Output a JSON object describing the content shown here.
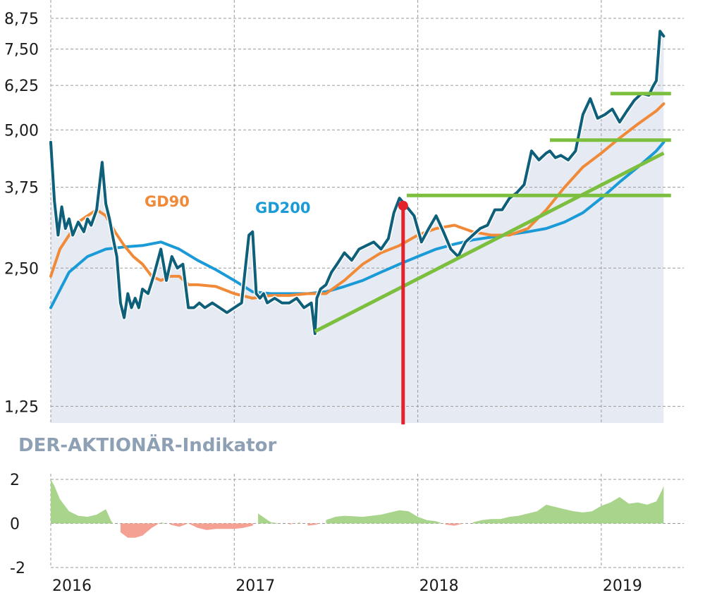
{
  "chart_data": [
    {
      "type": "line",
      "scale": "log",
      "ylim": [
        1.15,
        9.0
      ],
      "y_ticks": [
        "8,75",
        "7,50",
        "6,25",
        "5,00",
        "3,75",
        "2,50",
        "1,25"
      ],
      "y_tick_values": [
        8.75,
        7.5,
        6.25,
        5.0,
        3.75,
        2.5,
        1.25
      ],
      "x_ticks": [
        "2016",
        "2017",
        "2018",
        "2019"
      ],
      "x_tick_values": [
        2016.0,
        2017.0,
        2018.0,
        2019.0
      ],
      "xlim": [
        2016.0,
        2019.45
      ],
      "grid": true,
      "colors": {
        "price": "#0e5f7a",
        "gd90": "#f08a38",
        "gd200": "#1a9ad6",
        "trend": "#7cbf3e",
        "signal": "#e3232b",
        "area": "#e6ebf3"
      },
      "series": [
        {
          "key": "price",
          "x": [
            2016.0,
            2016.02,
            2016.04,
            2016.06,
            2016.08,
            2016.1,
            2016.12,
            2016.15,
            2016.18,
            2016.2,
            2016.22,
            2016.25,
            2016.28,
            2016.3,
            2016.32,
            2016.34,
            2016.36,
            2016.38,
            2016.4,
            2016.42,
            2016.44,
            2016.46,
            2016.48,
            2016.5,
            2016.53,
            2016.56,
            2016.6,
            2016.63,
            2016.66,
            2016.69,
            2016.72,
            2016.75,
            2016.78,
            2016.81,
            2016.84,
            2016.88,
            2016.92,
            2016.96,
            2017.0,
            2017.04,
            2017.08,
            2017.1,
            2017.12,
            2017.14,
            2017.16,
            2017.18,
            2017.22,
            2017.26,
            2017.3,
            2017.34,
            2017.38,
            2017.42,
            2017.44,
            2017.45,
            2017.47,
            2017.5,
            2017.53,
            2017.56,
            2017.6,
            2017.64,
            2017.68,
            2017.72,
            2017.76,
            2017.8,
            2017.84,
            2017.87,
            2017.9,
            2017.94,
            2017.98,
            2018.02,
            2018.06,
            2018.1,
            2018.14,
            2018.18,
            2018.22,
            2018.26,
            2018.3,
            2018.34,
            2018.38,
            2018.42,
            2018.46,
            2018.5,
            2018.54,
            2018.58,
            2018.62,
            2018.66,
            2018.7,
            2018.72,
            2018.75,
            2018.78,
            2018.82,
            2018.86,
            2018.9,
            2018.94,
            2018.98,
            2019.02,
            2019.06,
            2019.1,
            2019.14,
            2019.18,
            2019.22,
            2019.26,
            2019.28,
            2019.3,
            2019.32,
            2019.34
          ],
          "y": [
            4.7,
            3.5,
            2.95,
            3.4,
            3.05,
            3.2,
            2.95,
            3.15,
            3.0,
            3.2,
            3.1,
            3.35,
            4.25,
            3.45,
            3.2,
            2.9,
            2.65,
            2.1,
            1.95,
            2.2,
            2.05,
            2.15,
            2.05,
            2.25,
            2.2,
            2.4,
            2.75,
            2.35,
            2.65,
            2.5,
            2.55,
            2.05,
            2.05,
            2.1,
            2.05,
            2.1,
            2.05,
            2.0,
            2.05,
            2.1,
            2.95,
            3.0,
            2.2,
            2.15,
            2.2,
            2.1,
            2.15,
            2.1,
            2.1,
            2.15,
            2.05,
            2.1,
            1.8,
            2.15,
            2.25,
            2.3,
            2.45,
            2.55,
            2.7,
            2.6,
            2.75,
            2.8,
            2.85,
            2.75,
            2.9,
            3.3,
            3.55,
            3.4,
            3.25,
            2.85,
            3.05,
            3.25,
            3.0,
            2.75,
            2.65,
            2.85,
            2.95,
            3.05,
            3.1,
            3.35,
            3.35,
            3.55,
            3.65,
            3.8,
            4.5,
            4.3,
            4.45,
            4.5,
            4.35,
            4.4,
            4.3,
            4.5,
            5.4,
            5.85,
            5.3,
            5.4,
            5.55,
            5.2,
            5.5,
            5.8,
            6.0,
            5.95,
            6.2,
            6.4,
            8.2,
            8.0
          ]
        },
        {
          "key": "gd90",
          "name": "GD90",
          "x": [
            2016.0,
            2016.05,
            2016.1,
            2016.15,
            2016.2,
            2016.25,
            2016.3,
            2016.35,
            2016.4,
            2016.45,
            2016.5,
            2016.55,
            2016.6,
            2016.65,
            2016.7,
            2016.75,
            2016.8,
            2016.9,
            2017.0,
            2017.1,
            2017.2,
            2017.3,
            2017.4,
            2017.5,
            2017.6,
            2017.7,
            2017.8,
            2017.9,
            2018.0,
            2018.1,
            2018.2,
            2018.3,
            2018.4,
            2018.5,
            2018.6,
            2018.7,
            2018.8,
            2018.9,
            2019.0,
            2019.1,
            2019.2,
            2019.3,
            2019.34
          ],
          "y": [
            2.4,
            2.75,
            2.95,
            3.15,
            3.25,
            3.35,
            3.25,
            3.0,
            2.8,
            2.65,
            2.55,
            2.4,
            2.35,
            2.4,
            2.4,
            2.3,
            2.3,
            2.28,
            2.2,
            2.15,
            2.18,
            2.18,
            2.2,
            2.2,
            2.35,
            2.55,
            2.7,
            2.8,
            2.95,
            3.05,
            3.1,
            3.0,
            2.95,
            2.95,
            3.05,
            3.35,
            3.75,
            4.15,
            4.45,
            4.8,
            5.15,
            5.5,
            5.7
          ]
        },
        {
          "key": "gd200",
          "name": "GD200",
          "x": [
            2016.0,
            2016.1,
            2016.2,
            2016.3,
            2016.4,
            2016.5,
            2016.6,
            2016.7,
            2016.8,
            2016.9,
            2017.0,
            2017.1,
            2017.2,
            2017.3,
            2017.4,
            2017.5,
            2017.6,
            2017.7,
            2017.8,
            2017.9,
            2018.0,
            2018.1,
            2018.2,
            2018.3,
            2018.4,
            2018.5,
            2018.6,
            2018.7,
            2018.8,
            2018.9,
            2019.0,
            2019.1,
            2019.2,
            2019.3,
            2019.34
          ],
          "y": [
            2.05,
            2.45,
            2.65,
            2.75,
            2.78,
            2.8,
            2.85,
            2.75,
            2.6,
            2.48,
            2.35,
            2.22,
            2.2,
            2.2,
            2.2,
            2.22,
            2.28,
            2.35,
            2.45,
            2.55,
            2.65,
            2.75,
            2.82,
            2.88,
            2.92,
            2.96,
            3.0,
            3.05,
            3.15,
            3.3,
            3.55,
            3.85,
            4.15,
            4.5,
            4.7
          ]
        }
      ],
      "trend_lines": [
        {
          "x": [
            2017.44,
            2019.34
          ],
          "y": [
            1.82,
            4.45
          ]
        },
        {
          "x": [
            2017.94,
            2019.38
          ],
          "y": [
            3.6,
            3.6
          ]
        },
        {
          "x": [
            2018.72,
            2019.38
          ],
          "y": [
            4.75,
            4.75
          ]
        },
        {
          "x": [
            2019.05,
            2019.38
          ],
          "y": [
            6.0,
            6.0
          ]
        }
      ],
      "signal": {
        "x": 2017.92,
        "y": 3.42
      }
    },
    {
      "type": "area",
      "title": "DER-AKTIONÄR-Indikator",
      "ylim": [
        -2,
        2
      ],
      "y_ticks": [
        "2",
        "0",
        "-2"
      ],
      "y_tick_values": [
        2,
        0,
        -2
      ],
      "positive_color": "#a9d48c",
      "negative_color": "#f4a092",
      "x": [
        2016.0,
        2016.02,
        2016.05,
        2016.1,
        2016.15,
        2016.2,
        2016.25,
        2016.3,
        2016.33,
        2016.38,
        2016.42,
        2016.46,
        2016.5,
        2016.55,
        2016.6,
        2016.65,
        2016.7,
        2016.75,
        2016.8,
        2016.85,
        2016.9,
        2017.0,
        2017.05,
        2017.1,
        2017.13,
        2017.2,
        2017.25,
        2017.3,
        2017.35,
        2017.4,
        2017.45,
        2017.5,
        2017.55,
        2017.6,
        2017.7,
        2017.8,
        2017.9,
        2017.95,
        2018.0,
        2018.05,
        2018.1,
        2018.15,
        2018.2,
        2018.25,
        2018.3,
        2018.35,
        2018.4,
        2018.45,
        2018.5,
        2018.55,
        2018.6,
        2018.65,
        2018.7,
        2018.75,
        2018.8,
        2018.85,
        2018.9,
        2018.95,
        2019.0,
        2019.05,
        2019.1,
        2019.15,
        2019.2,
        2019.25,
        2019.3,
        2019.33,
        2019.34
      ],
      "y": [
        2.0,
        1.7,
        1.1,
        0.55,
        0.35,
        0.3,
        0.4,
        0.65,
        0.1,
        -0.4,
        -0.65,
        -0.65,
        -0.55,
        -0.2,
        0.05,
        -0.05,
        -0.15,
        0.0,
        -0.2,
        -0.3,
        -0.25,
        -0.25,
        -0.2,
        -0.1,
        0.45,
        0.05,
        0.0,
        -0.05,
        0.05,
        -0.1,
        -0.05,
        0.15,
        0.3,
        0.35,
        0.3,
        0.4,
        0.6,
        0.55,
        0.3,
        0.15,
        0.1,
        -0.05,
        -0.1,
        0.0,
        0.05,
        0.15,
        0.2,
        0.2,
        0.3,
        0.35,
        0.45,
        0.55,
        0.85,
        0.75,
        0.65,
        0.55,
        0.5,
        0.55,
        0.8,
        0.95,
        1.2,
        0.9,
        0.95,
        0.85,
        1.0,
        1.5,
        1.7
      ]
    }
  ]
}
